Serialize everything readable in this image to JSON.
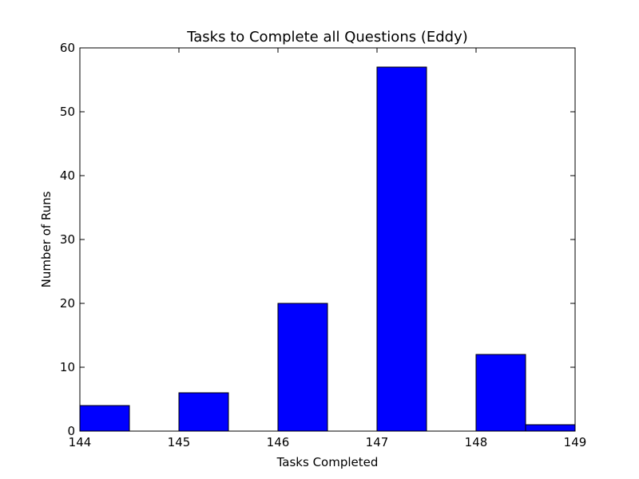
{
  "chart_data": {
    "type": "bar",
    "title": "Tasks to Complete all Questions (Eddy)",
    "xlabel": "Tasks Completed",
    "ylabel": "Number of Runs",
    "xlim": [
      144,
      149
    ],
    "ylim": [
      0,
      60
    ],
    "xticks": [
      "144",
      "145",
      "146",
      "147",
      "148",
      "149"
    ],
    "yticks": [
      "0",
      "10",
      "20",
      "30",
      "40",
      "50",
      "60"
    ],
    "bins": [
      {
        "x0": 144.0,
        "x1": 144.5,
        "value": 4
      },
      {
        "x0": 145.0,
        "x1": 145.5,
        "value": 6
      },
      {
        "x0": 146.0,
        "x1": 146.5,
        "value": 20
      },
      {
        "x0": 147.0,
        "x1": 147.5,
        "value": 57
      },
      {
        "x0": 148.0,
        "x1": 148.5,
        "value": 12
      },
      {
        "x0": 148.5,
        "x1": 149.0,
        "value": 1
      }
    ],
    "bar_color": "#0000ff",
    "grid": false,
    "legend": false
  }
}
